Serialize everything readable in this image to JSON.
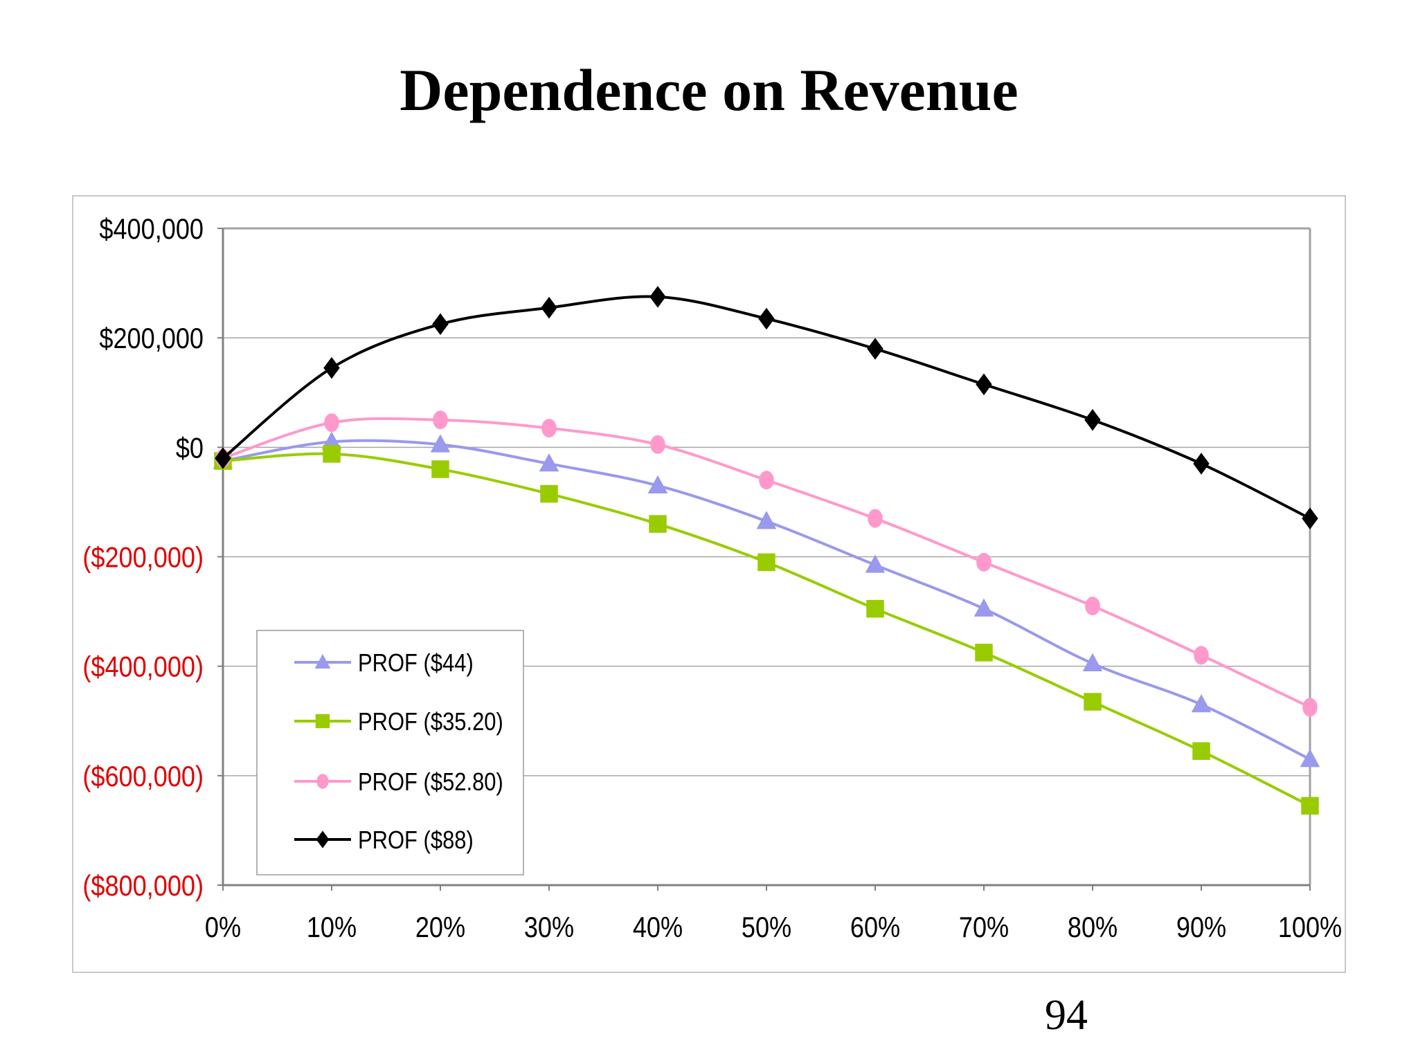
{
  "slide": {
    "title": "Dependence on Revenue",
    "page_number": "94"
  },
  "chart_data": {
    "type": "line",
    "title": "",
    "xlabel": "",
    "ylabel": "",
    "categories": [
      "0%",
      "10%",
      "20%",
      "30%",
      "40%",
      "50%",
      "60%",
      "70%",
      "80%",
      "90%",
      "100%"
    ],
    "y_ticks": [
      {
        "value": 400000,
        "label": "$400,000",
        "color": "#000000"
      },
      {
        "value": 200000,
        "label": "$200,000",
        "color": "#000000"
      },
      {
        "value": 0,
        "label": "$0",
        "color": "#000000"
      },
      {
        "value": -200000,
        "label": "($200,000)",
        "color": "#e00000"
      },
      {
        "value": -400000,
        "label": "($400,000)",
        "color": "#e00000"
      },
      {
        "value": -600000,
        "label": "($600,000)",
        "color": "#e00000"
      },
      {
        "value": -800000,
        "label": "($800,000)",
        "color": "#e00000"
      }
    ],
    "ylim": [
      -800000,
      400000
    ],
    "grid": true,
    "legend_position": "bottom-left",
    "series": [
      {
        "name": "PROF ($44)",
        "color": "#9999ee",
        "marker": "triangle",
        "values": [
          -25000,
          10000,
          5000,
          -30000,
          -70000,
          -135000,
          -215000,
          -295000,
          -395000,
          -470000,
          -570000
        ]
      },
      {
        "name": "PROF ($35.20)",
        "color": "#99cc00",
        "marker": "square",
        "values": [
          -25000,
          -12000,
          -40000,
          -85000,
          -140000,
          -210000,
          -295000,
          -375000,
          -465000,
          -555000,
          -655000
        ]
      },
      {
        "name": "PROF ($52.80)",
        "color": "#ff99cc",
        "marker": "circle",
        "values": [
          -20000,
          45000,
          50000,
          35000,
          5000,
          -60000,
          -130000,
          -210000,
          -290000,
          -380000,
          -475000
        ]
      },
      {
        "name": "PROF ($88)",
        "color": "#000000",
        "marker": "diamond",
        "values": [
          -20000,
          145000,
          225000,
          255000,
          275000,
          235000,
          180000,
          115000,
          50000,
          -30000,
          -130000
        ]
      }
    ]
  }
}
